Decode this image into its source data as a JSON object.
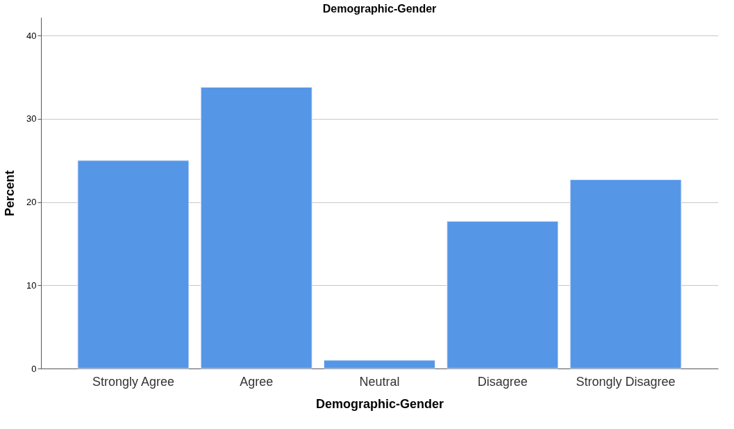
{
  "chart_data": {
    "type": "bar",
    "title": "Demographic-Gender",
    "xlabel": "Demographic-Gender",
    "ylabel": "Percent",
    "categories": [
      "Strongly Agree",
      "Agree",
      "Neutral",
      "Disagree",
      "Strongly Disagree"
    ],
    "values": [
      25.0,
      33.8,
      1.0,
      17.7,
      22.7
    ],
    "color": "#5596e6",
    "ylim": [
      0,
      42.2
    ],
    "yticks": [
      0,
      10,
      20,
      30,
      40
    ],
    "grid": "y"
  }
}
